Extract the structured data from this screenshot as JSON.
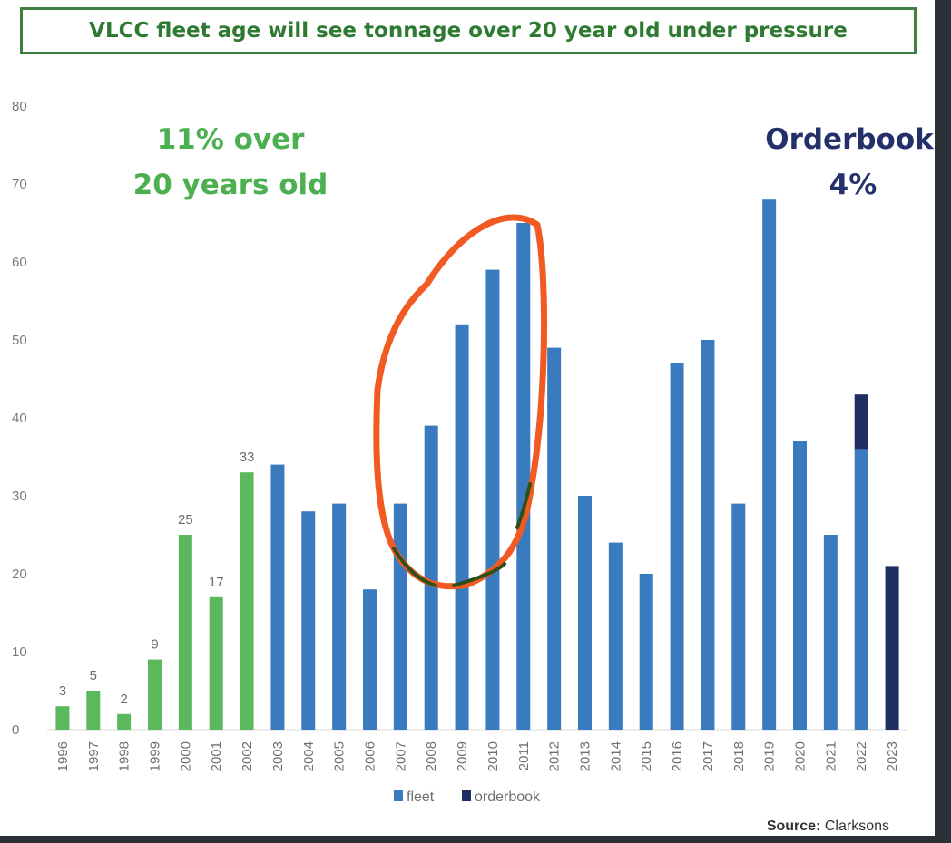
{
  "title": "VLCC fleet age will see tonnage over 20 year old under pressure",
  "annotations": {
    "over20_line1": "11% over",
    "over20_line2": "20 years old",
    "orderbook_line1": "Orderbook",
    "orderbook_line2": "4%"
  },
  "source_label": "Source:",
  "source_value": "Clarksons",
  "colors": {
    "green": "#5cb85c",
    "fleet": "#3a7bbf",
    "orderbook": "#1f2d63",
    "circle": "#f15a22",
    "title_border": "#3f7f3f",
    "title_text": "#2f7a33"
  },
  "chart_data": {
    "type": "bar",
    "stacked": true,
    "categories": [
      "1996",
      "1997",
      "1998",
      "1999",
      "2000",
      "2001",
      "2002",
      "2003",
      "2004",
      "2005",
      "2006",
      "2007",
      "2008",
      "2009",
      "2010",
      "2011",
      "2012",
      "2013",
      "2014",
      "2015",
      "2016",
      "2017",
      "2018",
      "2019",
      "2020",
      "2021",
      "2022",
      "2023"
    ],
    "series": [
      {
        "name": "fleet",
        "values": [
          3,
          5,
          2,
          9,
          25,
          17,
          33,
          34,
          28,
          29,
          18,
          29,
          39,
          52,
          59,
          65,
          49,
          30,
          24,
          20,
          47,
          50,
          29,
          68,
          37,
          25,
          36,
          0
        ]
      },
      {
        "name": "orderbook",
        "values": [
          0,
          0,
          0,
          0,
          0,
          0,
          0,
          0,
          0,
          0,
          0,
          0,
          0,
          0,
          0,
          0,
          0,
          0,
          0,
          0,
          0,
          0,
          0,
          0,
          0,
          0,
          7,
          21
        ]
      }
    ],
    "over_20_years_categories": [
      "1996",
      "1997",
      "1998",
      "1999",
      "2000",
      "2001",
      "2002"
    ],
    "data_labels": {
      "1996": "3",
      "1997": "5",
      "1998": "2",
      "1999": "9",
      "2000": "25",
      "2001": "17",
      "2002": "33"
    },
    "ylim": [
      0,
      80
    ],
    "yticks": [
      0,
      10,
      20,
      30,
      40,
      50,
      60,
      70,
      80
    ],
    "grid": false,
    "legend_position": "bottom-center",
    "highlight": {
      "shape": "hand-drawn-ellipse",
      "categories": [
        "2007",
        "2008",
        "2009",
        "2010",
        "2011"
      ]
    }
  }
}
